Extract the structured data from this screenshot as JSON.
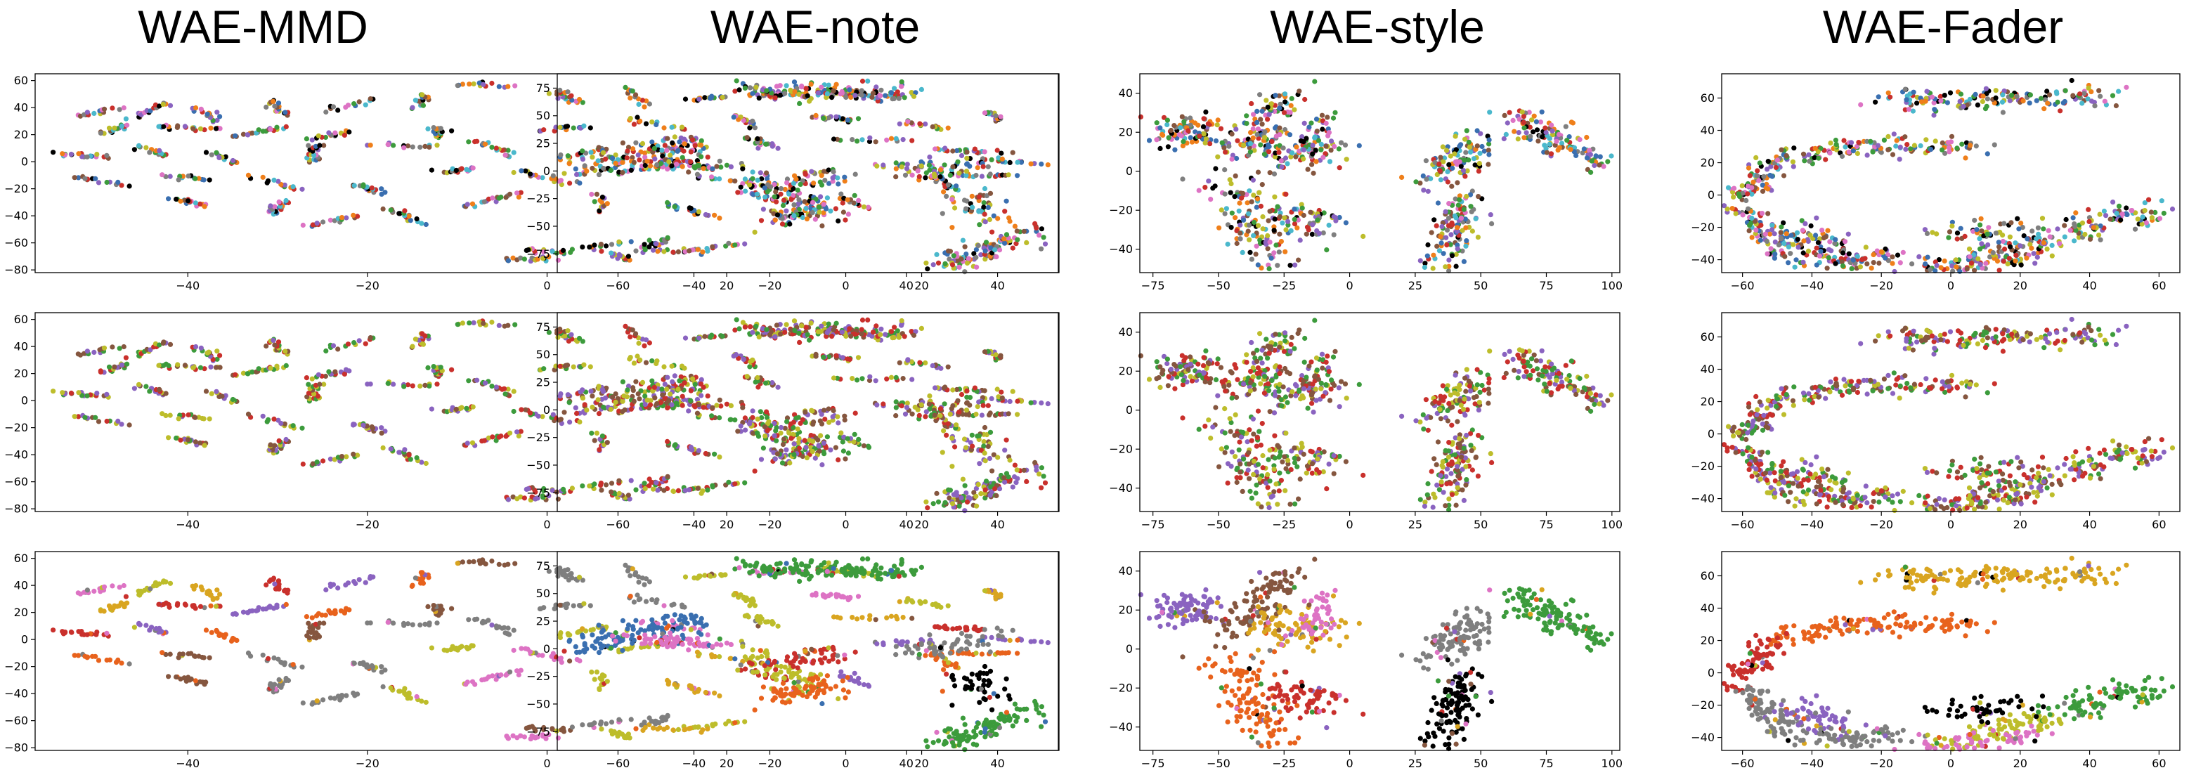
{
  "titles": [
    "WAE-MMD",
    "WAE-note",
    "WAE-style",
    "WAE-Fader"
  ],
  "palette": {
    "blue": "#3a6fb0",
    "orange": "#ef7f1a",
    "green": "#3c9b3c",
    "red": "#c9302c",
    "purple": "#8a63c0",
    "brown": "#85563f",
    "pink": "#dd73c4",
    "gray": "#7f7f7f",
    "olive": "#bdbd2b",
    "cyan": "#4ab8cc",
    "black": "#000000",
    "gold": "#d9a520",
    "dorange": "#e8621c"
  },
  "chart_data": [
    {
      "type": "scatter",
      "title": "WAE-MMD",
      "row_layout": "embedding-1",
      "row": 0,
      "xlim": [
        -57,
        57
      ],
      "ylim": [
        -82,
        65
      ],
      "xticks": [
        "-40",
        "-20",
        "0",
        "20",
        "40"
      ],
      "yticks": [
        "60",
        "40",
        "20",
        "0",
        "-20",
        "-40",
        "-60",
        "-80"
      ],
      "coloring": "mixed",
      "colors": [
        "blue",
        "orange",
        "green",
        "red",
        "purple",
        "brown",
        "pink",
        "gray",
        "olive",
        "cyan",
        "black"
      ]
    },
    {
      "type": "scatter",
      "title": "WAE-note",
      "row_layout": "embedding-2",
      "row": 0,
      "xlim": [
        -76,
        56
      ],
      "ylim": [
        -92,
        88
      ],
      "xticks": [
        "-60",
        "-40",
        "-20",
        "0",
        "20",
        "40"
      ],
      "yticks": [
        "75",
        "50",
        "25",
        "0",
        "-25",
        "-50",
        "-75"
      ],
      "coloring": "mixed",
      "colors": [
        "blue",
        "orange",
        "green",
        "red",
        "purple",
        "brown",
        "pink",
        "gray",
        "olive",
        "cyan",
        "black"
      ]
    },
    {
      "type": "scatter",
      "title": "WAE-style",
      "row_layout": "embedding-3",
      "row": 0,
      "xlim": [
        -80,
        103
      ],
      "ylim": [
        -52,
        50
      ],
      "xticks": [
        "-75",
        "-50",
        "-25",
        "0",
        "25",
        "50",
        "75",
        "100"
      ],
      "yticks": [
        "40",
        "20",
        "0",
        "-20",
        "-40"
      ],
      "coloring": "mixed",
      "colors": [
        "blue",
        "orange",
        "green",
        "red",
        "purple",
        "brown",
        "pink",
        "gray",
        "olive",
        "cyan",
        "black"
      ]
    },
    {
      "type": "scatter",
      "title": "WAE-Fader",
      "row_layout": "embedding-4",
      "row": 0,
      "xlim": [
        -66,
        66
      ],
      "ylim": [
        -48,
        75
      ],
      "xticks": [
        "-60",
        "-40",
        "-20",
        "0",
        "20",
        "40",
        "60"
      ],
      "yticks": [
        "60",
        "40",
        "20",
        "0",
        "-20",
        "-40"
      ],
      "coloring": "mixed",
      "colors": [
        "blue",
        "orange",
        "green",
        "red",
        "purple",
        "brown",
        "pink",
        "gray",
        "olive",
        "cyan",
        "black"
      ]
    },
    {
      "type": "scatter",
      "row_layout": "embedding-1",
      "row": 1,
      "xlim": [
        -57,
        57
      ],
      "ylim": [
        -82,
        65
      ],
      "xticks": [
        "-40",
        "-20",
        "0",
        "20",
        "40"
      ],
      "yticks": [
        "60",
        "40",
        "20",
        "0",
        "-20",
        "-40",
        "-60",
        "-80"
      ],
      "coloring": "mixed",
      "colors": [
        "red",
        "green",
        "purple",
        "brown",
        "olive"
      ]
    },
    {
      "type": "scatter",
      "row_layout": "embedding-2",
      "row": 1,
      "xlim": [
        -76,
        56
      ],
      "ylim": [
        -92,
        88
      ],
      "xticks": [
        "-60",
        "-40",
        "-20",
        "0",
        "20",
        "40"
      ],
      "yticks": [
        "75",
        "50",
        "25",
        "0",
        "-25",
        "-50",
        "-75"
      ],
      "coloring": "mixed",
      "colors": [
        "red",
        "green",
        "purple",
        "brown",
        "olive"
      ]
    },
    {
      "type": "scatter",
      "row_layout": "embedding-3",
      "row": 1,
      "xlim": [
        -80,
        103
      ],
      "ylim": [
        -52,
        50
      ],
      "xticks": [
        "-75",
        "-50",
        "-25",
        "0",
        "25",
        "50",
        "75",
        "100"
      ],
      "yticks": [
        "40",
        "20",
        "0",
        "-20",
        "-40"
      ],
      "coloring": "mixed",
      "colors": [
        "red",
        "green",
        "purple",
        "brown",
        "olive"
      ]
    },
    {
      "type": "scatter",
      "row_layout": "embedding-4",
      "row": 1,
      "xlim": [
        -66,
        66
      ],
      "ylim": [
        -48,
        75
      ],
      "xticks": [
        "-60",
        "-40",
        "-20",
        "0",
        "20",
        "40",
        "60"
      ],
      "yticks": [
        "60",
        "40",
        "20",
        "0",
        "-20",
        "-40"
      ],
      "coloring": "mixed",
      "colors": [
        "red",
        "green",
        "purple",
        "brown",
        "olive"
      ]
    },
    {
      "type": "scatter",
      "row_layout": "embedding-1",
      "row": 2,
      "xlim": [
        -57,
        57
      ],
      "ylim": [
        -82,
        65
      ],
      "xticks": [
        "-40",
        "-20",
        "0",
        "20",
        "40"
      ],
      "yticks": [
        "60",
        "40",
        "20",
        "0",
        "-20",
        "-40",
        "-60",
        "-80"
      ],
      "coloring": "clusters",
      "cluster_colors": [
        "pink",
        "olive",
        "gold",
        "red",
        "purple",
        "dorange",
        "brown",
        "gray",
        "gray",
        "olive"
      ]
    },
    {
      "type": "scatter",
      "row_layout": "embedding-2",
      "row": 2,
      "xlim": [
        -76,
        56
      ],
      "ylim": [
        -92,
        88
      ],
      "xticks": [
        "-60",
        "-40",
        "-20",
        "0",
        "20",
        "40"
      ],
      "yticks": [
        "75",
        "50",
        "25",
        "0",
        "-25",
        "-50",
        "-75"
      ],
      "coloring": "clusters",
      "cluster_colors": [
        "green",
        "blue",
        "pink",
        "olive",
        "dorange",
        "red",
        "gray",
        "black"
      ]
    },
    {
      "type": "scatter",
      "row_layout": "embedding-3",
      "row": 2,
      "xlim": [
        -80,
        103
      ],
      "ylim": [
        -52,
        50
      ],
      "xticks": [
        "-75",
        "-50",
        "-25",
        "0",
        "25",
        "50",
        "75",
        "100"
      ],
      "yticks": [
        "40",
        "20",
        "0",
        "-20",
        "-40"
      ],
      "coloring": "clusters",
      "cluster_colors": [
        "purple",
        "brown",
        "gold",
        "pink",
        "dorange",
        "red",
        "gray",
        "black",
        "green"
      ]
    },
    {
      "type": "scatter",
      "row_layout": "embedding-4",
      "row": 2,
      "xlim": [
        -66,
        66
      ],
      "ylim": [
        -48,
        75
      ],
      "xticks": [
        "-60",
        "-40",
        "-20",
        "0",
        "20",
        "40",
        "60"
      ],
      "yticks": [
        "60",
        "40",
        "20",
        "0",
        "-20",
        "-40"
      ],
      "coloring": "clusters",
      "cluster_colors": [
        "gold",
        "dorange",
        "red",
        "gray",
        "purple",
        "olive",
        "green",
        "black",
        "pink"
      ]
    }
  ]
}
